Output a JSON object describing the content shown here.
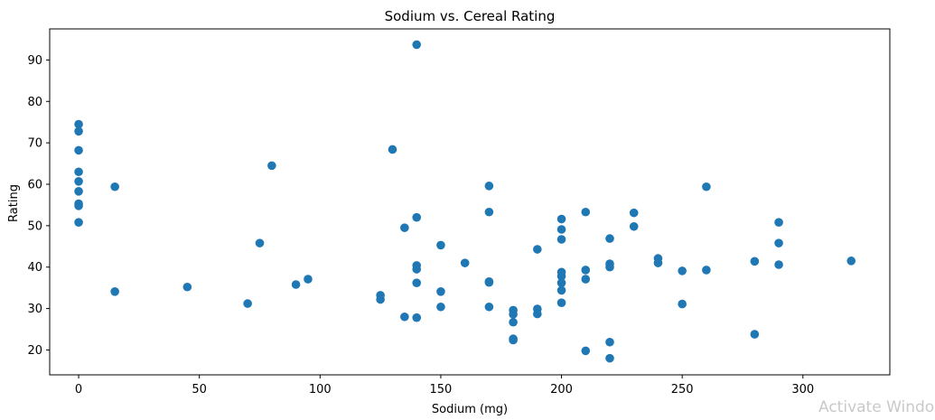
{
  "watermark": "Activate Windo",
  "chart_data": {
    "type": "scatter",
    "title": "Sodium vs. Cereal Rating",
    "xlabel": "Sodium (mg)",
    "ylabel": "Rating",
    "xlim": [
      -12,
      336
    ],
    "ylim": [
      14,
      97.5
    ],
    "xticks": [
      0,
      50,
      100,
      150,
      200,
      250,
      300
    ],
    "yticks": [
      20,
      30,
      40,
      50,
      60,
      70,
      80,
      90
    ],
    "grid": false,
    "color": "#1f77b4",
    "points": [
      {
        "x": 0,
        "y": 74.5
      },
      {
        "x": 0,
        "y": 72.8
      },
      {
        "x": 0,
        "y": 68.2
      },
      {
        "x": 0,
        "y": 63.0
      },
      {
        "x": 0,
        "y": 60.7
      },
      {
        "x": 0,
        "y": 58.3
      },
      {
        "x": 0,
        "y": 55.3
      },
      {
        "x": 0,
        "y": 54.8
      },
      {
        "x": 0,
        "y": 50.8
      },
      {
        "x": 15,
        "y": 59.4
      },
      {
        "x": 15,
        "y": 34.1
      },
      {
        "x": 45,
        "y": 35.2
      },
      {
        "x": 70,
        "y": 31.2
      },
      {
        "x": 75,
        "y": 45.8
      },
      {
        "x": 80,
        "y": 64.5
      },
      {
        "x": 90,
        "y": 35.8
      },
      {
        "x": 95,
        "y": 37.1
      },
      {
        "x": 125,
        "y": 33.2
      },
      {
        "x": 125,
        "y": 32.2
      },
      {
        "x": 130,
        "y": 68.4
      },
      {
        "x": 135,
        "y": 49.5
      },
      {
        "x": 135,
        "y": 28.0
      },
      {
        "x": 140,
        "y": 93.7
      },
      {
        "x": 140,
        "y": 52.0
      },
      {
        "x": 140,
        "y": 40.4
      },
      {
        "x": 140,
        "y": 39.5
      },
      {
        "x": 140,
        "y": 36.2
      },
      {
        "x": 140,
        "y": 27.8
      },
      {
        "x": 150,
        "y": 45.3
      },
      {
        "x": 150,
        "y": 34.1
      },
      {
        "x": 150,
        "y": 30.4
      },
      {
        "x": 160,
        "y": 41.0
      },
      {
        "x": 170,
        "y": 59.6
      },
      {
        "x": 170,
        "y": 53.3
      },
      {
        "x": 170,
        "y": 36.5
      },
      {
        "x": 170,
        "y": 36.3
      },
      {
        "x": 170,
        "y": 30.4
      },
      {
        "x": 180,
        "y": 29.6
      },
      {
        "x": 180,
        "y": 28.6
      },
      {
        "x": 180,
        "y": 26.7
      },
      {
        "x": 180,
        "y": 22.7
      },
      {
        "x": 180,
        "y": 22.4
      },
      {
        "x": 190,
        "y": 44.3
      },
      {
        "x": 190,
        "y": 29.9
      },
      {
        "x": 190,
        "y": 28.7
      },
      {
        "x": 200,
        "y": 51.6
      },
      {
        "x": 200,
        "y": 49.1
      },
      {
        "x": 200,
        "y": 46.7
      },
      {
        "x": 200,
        "y": 38.8
      },
      {
        "x": 200,
        "y": 37.8
      },
      {
        "x": 200,
        "y": 36.2
      },
      {
        "x": 200,
        "y": 34.4
      },
      {
        "x": 200,
        "y": 31.4
      },
      {
        "x": 210,
        "y": 53.3
      },
      {
        "x": 210,
        "y": 39.3
      },
      {
        "x": 210,
        "y": 37.1
      },
      {
        "x": 210,
        "y": 19.8
      },
      {
        "x": 220,
        "y": 46.9
      },
      {
        "x": 220,
        "y": 40.8
      },
      {
        "x": 220,
        "y": 40.0
      },
      {
        "x": 220,
        "y": 21.9
      },
      {
        "x": 220,
        "y": 18.0
      },
      {
        "x": 230,
        "y": 53.1
      },
      {
        "x": 230,
        "y": 49.8
      },
      {
        "x": 240,
        "y": 42.1
      },
      {
        "x": 240,
        "y": 41.0
      },
      {
        "x": 250,
        "y": 39.1
      },
      {
        "x": 250,
        "y": 31.1
      },
      {
        "x": 260,
        "y": 59.4
      },
      {
        "x": 260,
        "y": 39.3
      },
      {
        "x": 280,
        "y": 41.4
      },
      {
        "x": 280,
        "y": 23.8
      },
      {
        "x": 290,
        "y": 50.8
      },
      {
        "x": 290,
        "y": 45.8
      },
      {
        "x": 290,
        "y": 40.6
      },
      {
        "x": 320,
        "y": 41.5
      }
    ]
  }
}
